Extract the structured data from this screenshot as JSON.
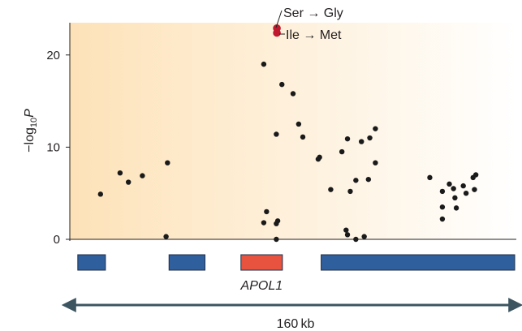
{
  "chart_data": {
    "type": "scatter",
    "xlabel": "",
    "ylabel": "−log",
    "ylabel_sub": "10",
    "ylabel_var": "P",
    "ylim": [
      0,
      23.5
    ],
    "xlim": [
      0,
      160
    ],
    "yticks": [
      0,
      10,
      20
    ],
    "grid": false,
    "background_gradient": [
      "#fde2b8",
      "#ffffff"
    ],
    "series": [
      {
        "color": "#1a1a1a",
        "points": [
          {
            "x": 11,
            "y": 4.9
          },
          {
            "x": 18,
            "y": 7.2
          },
          {
            "x": 21,
            "y": 6.2
          },
          {
            "x": 26,
            "y": 6.9
          },
          {
            "x": 35,
            "y": 8.3
          },
          {
            "x": 34.5,
            "y": 0.3
          },
          {
            "x": 69.5,
            "y": 19.0
          },
          {
            "x": 70.5,
            "y": 3.0
          },
          {
            "x": 69.5,
            "y": 1.8
          },
          {
            "x": 74,
            "y": 11.4
          },
          {
            "x": 74,
            "y": 1.7
          },
          {
            "x": 74.5,
            "y": 2.0
          },
          {
            "x": 74,
            "y": 0.0
          },
          {
            "x": 76,
            "y": 16.8
          },
          {
            "x": 80,
            "y": 15.8
          },
          {
            "x": 82,
            "y": 12.5
          },
          {
            "x": 83.5,
            "y": 11.1
          },
          {
            "x": 89,
            "y": 8.7
          },
          {
            "x": 89.5,
            "y": 8.9
          },
          {
            "x": 93.5,
            "y": 5.4
          },
          {
            "x": 97.5,
            "y": 9.5
          },
          {
            "x": 99.5,
            "y": 10.9
          },
          {
            "x": 99,
            "y": 1.0
          },
          {
            "x": 99.5,
            "y": 0.5
          },
          {
            "x": 100.5,
            "y": 5.2
          },
          {
            "x": 102.5,
            "y": 6.4
          },
          {
            "x": 102.5,
            "y": 0.0
          },
          {
            "x": 104.5,
            "y": 10.6
          },
          {
            "x": 105.5,
            "y": 0.3
          },
          {
            "x": 107,
            "y": 6.5
          },
          {
            "x": 107.5,
            "y": 11.0
          },
          {
            "x": 109.5,
            "y": 12.0
          },
          {
            "x": 109.5,
            "y": 8.3
          },
          {
            "x": 129,
            "y": 6.7
          },
          {
            "x": 133.5,
            "y": 5.2
          },
          {
            "x": 133.5,
            "y": 3.5
          },
          {
            "x": 133.5,
            "y": 2.2
          },
          {
            "x": 136,
            "y": 6.0
          },
          {
            "x": 137.5,
            "y": 5.5
          },
          {
            "x": 138,
            "y": 4.5
          },
          {
            "x": 138.5,
            "y": 3.4
          },
          {
            "x": 141,
            "y": 5.8
          },
          {
            "x": 142,
            "y": 5.0
          },
          {
            "x": 144.5,
            "y": 6.7
          },
          {
            "x": 145.5,
            "y": 7.0
          },
          {
            "x": 145,
            "y": 5.4
          }
        ]
      },
      {
        "color": "#c0182e",
        "points": [
          {
            "x": 74.2,
            "y": 22.9
          },
          {
            "x": 74.2,
            "y": 22.4
          }
        ]
      }
    ],
    "annotations": [
      {
        "text": "Ser → Gly"
      },
      {
        "text": "Ile → Met"
      }
    ],
    "gene_track": {
      "genes": [
        {
          "start": 2,
          "end": 12,
          "color": "#2f5f9c",
          "label": ""
        },
        {
          "start": 35,
          "end": 48,
          "color": "#2f5f9c",
          "label": ""
        },
        {
          "start": 61,
          "end": 76,
          "color": "#e8533f",
          "label": "APOL1"
        },
        {
          "start": 90,
          "end": 160,
          "color": "#2f5f9c",
          "label": ""
        }
      ]
    },
    "scale_bar": {
      "label": "160 kb",
      "color": "#3d5560"
    }
  }
}
